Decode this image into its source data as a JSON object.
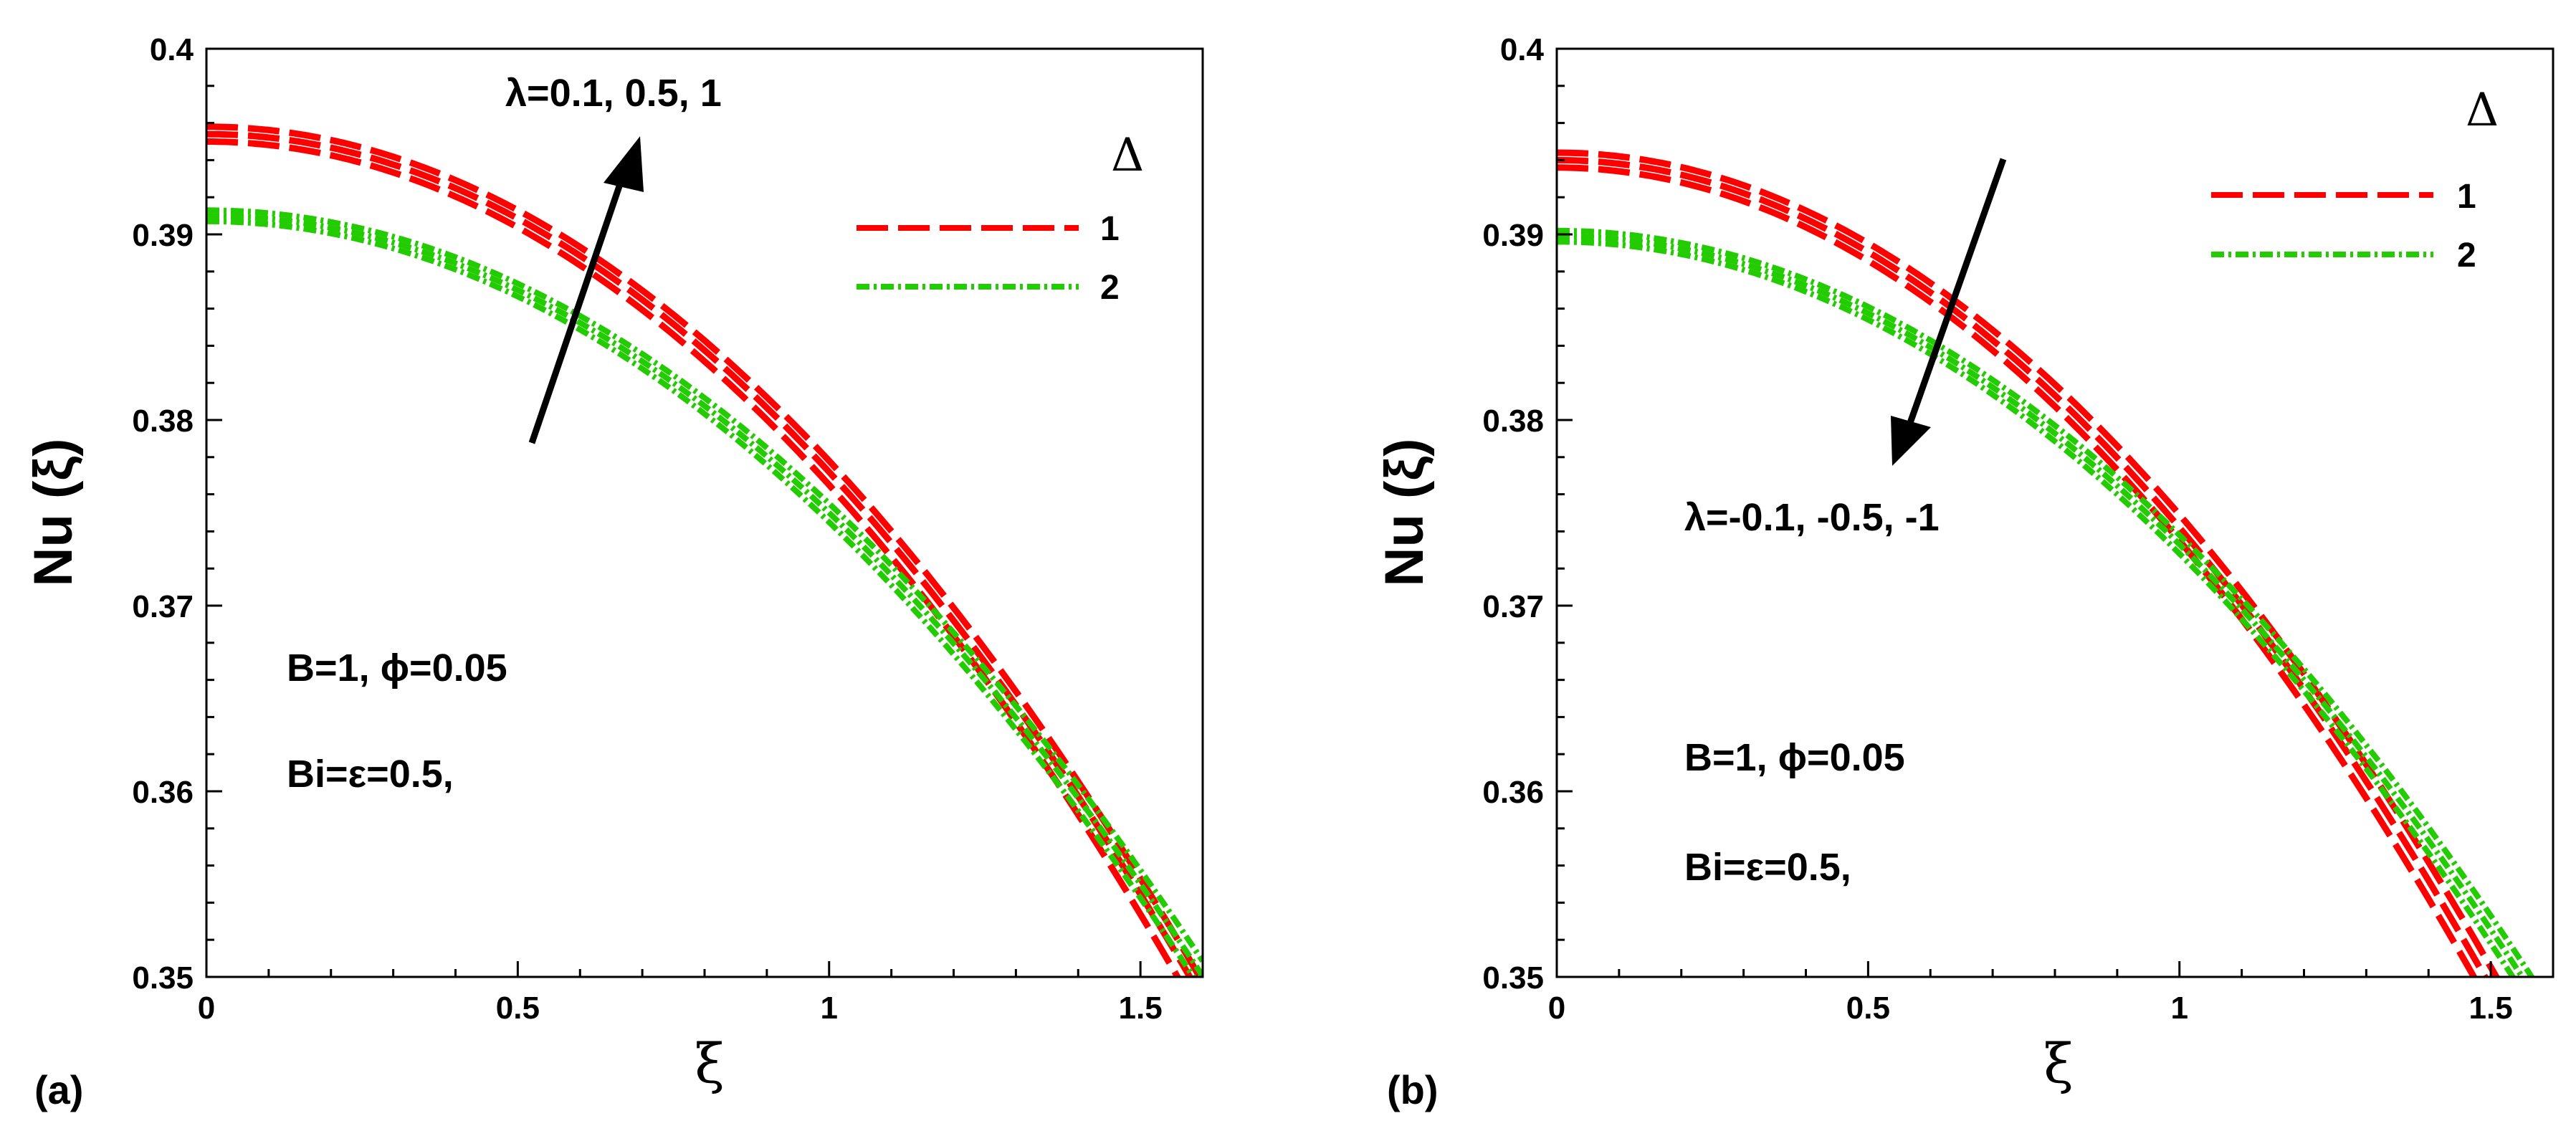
{
  "chart_data": [
    {
      "panel_label": "(a)",
      "type": "line",
      "xlabel": "ξ",
      "ylabel": "Nu (ξ)",
      "xlim": [
        0,
        1.6
      ],
      "ylim": [
        0.35,
        0.4
      ],
      "xticks": [
        0,
        0.5,
        1,
        1.5
      ],
      "xtick_labels": [
        "0",
        "0.5",
        "1",
        "1.5"
      ],
      "yticks": [
        0.35,
        0.36,
        0.37,
        0.38,
        0.39,
        0.4
      ],
      "ytick_labels": [
        "0.35",
        "0.36",
        "0.37",
        "0.38",
        "0.39",
        "0.4"
      ],
      "legend_title": "Δ",
      "legend_position": "top-right",
      "legend": [
        {
          "label": "1",
          "color": "#ff0000",
          "style": "dashed"
        },
        {
          "label": "2",
          "color": "#22cc00",
          "style": "dashdot"
        }
      ],
      "annotations": {
        "arrow_label": "λ=0.1, 0.5, 1",
        "arrow_direction": "up",
        "params_line1": "B=1, ϕ=0.05",
        "params_line2": "Bi=ε=0.5,"
      },
      "series": [
        {
          "name": "Δ=1, λ=0.1",
          "group": "1",
          "color": "#ff0000",
          "style": "dashed",
          "y0": 0.395,
          "curvature": 0.0185
        },
        {
          "name": "Δ=1, λ=0.5",
          "group": "1",
          "color": "#ff0000",
          "style": "dashed",
          "y0": 0.3954,
          "curvature": 0.0182
        },
        {
          "name": "Δ=1, λ=1",
          "group": "1",
          "color": "#ff0000",
          "style": "dashed",
          "y0": 0.3958,
          "curvature": 0.018
        },
        {
          "name": "Δ=2, λ=0.1",
          "group": "2",
          "color": "#22cc00",
          "style": "dashdot",
          "y0": 0.3907,
          "curvature": 0.0162
        },
        {
          "name": "Δ=2, λ=0.5",
          "group": "2",
          "color": "#22cc00",
          "style": "dashdot",
          "y0": 0.391,
          "curvature": 0.016
        },
        {
          "name": "Δ=2, λ=1",
          "group": "2",
          "color": "#22cc00",
          "style": "dashdot",
          "y0": 0.3913,
          "curvature": 0.0158
        }
      ]
    },
    {
      "panel_label": "(b)",
      "type": "line",
      "xlabel": "ξ",
      "ylabel": "Nu (ξ)",
      "xlim": [
        0,
        1.6
      ],
      "ylim": [
        0.35,
        0.4
      ],
      "xticks": [
        0,
        0.5,
        1,
        1.5
      ],
      "xtick_labels": [
        "0",
        "0.5",
        "1",
        "1.5"
      ],
      "yticks": [
        0.35,
        0.36,
        0.37,
        0.38,
        0.39,
        0.4
      ],
      "ytick_labels": [
        "0.35",
        "0.36",
        "0.37",
        "0.38",
        "0.39",
        "0.4"
      ],
      "legend_title": "Δ",
      "legend_position": "top-right",
      "legend": [
        {
          "label": "1",
          "color": "#ff0000",
          "style": "dashed"
        },
        {
          "label": "2",
          "color": "#22cc00",
          "style": "dashdot"
        }
      ],
      "annotations": {
        "arrow_label": "λ=-0.1, -0.5, -1",
        "arrow_direction": "down",
        "params_line1": "B=1, ϕ=0.05",
        "params_line2": "Bi=ε=0.5,"
      },
      "series": [
        {
          "name": "Δ=1, λ=-0.1",
          "group": "1",
          "color": "#ff0000",
          "style": "dashed",
          "y0": 0.3944,
          "curvature": 0.0195
        },
        {
          "name": "Δ=1, λ=-0.5",
          "group": "1",
          "color": "#ff0000",
          "style": "dashed",
          "y0": 0.394,
          "curvature": 0.0198
        },
        {
          "name": "Δ=1, λ=-1",
          "group": "1",
          "color": "#ff0000",
          "style": "dashed",
          "y0": 0.3936,
          "curvature": 0.0201
        },
        {
          "name": "Δ=2, λ=-0.1",
          "group": "2",
          "color": "#22cc00",
          "style": "dashdot",
          "y0": 0.3902,
          "curvature": 0.0164
        },
        {
          "name": "Δ=2, λ=-0.5",
          "group": "2",
          "color": "#22cc00",
          "style": "dashdot",
          "y0": 0.3899,
          "curvature": 0.0166
        },
        {
          "name": "Δ=2, λ=-1",
          "group": "2",
          "color": "#22cc00",
          "style": "dashdot",
          "y0": 0.3896,
          "curvature": 0.0168
        }
      ]
    }
  ]
}
